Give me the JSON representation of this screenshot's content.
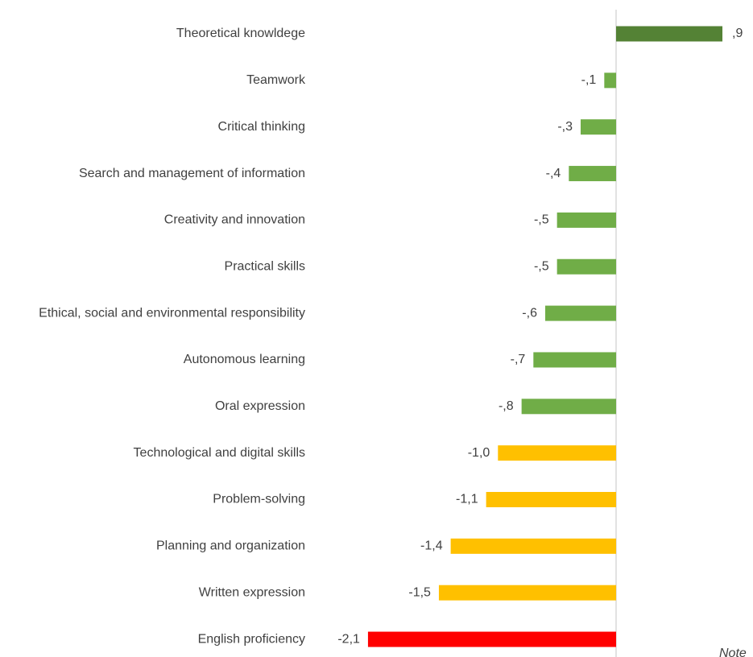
{
  "chart_data": {
    "type": "bar",
    "orientation": "horizontal",
    "categories": [
      "Theoretical knowldege",
      "Teamwork",
      "Critical thinking",
      "Search and management of information",
      "Creativity and innovation",
      "Practical skills",
      "Ethical, social and environmental responsibility",
      "Autonomous learning",
      "Oral expression",
      "Technological and digital skills",
      "Problem-solving",
      "Planning and organization",
      "Written expression",
      "English proficiency"
    ],
    "values": [
      0.9,
      -0.1,
      -0.3,
      -0.4,
      -0.5,
      -0.5,
      -0.6,
      -0.7,
      -0.8,
      -1.0,
      -1.1,
      -1.4,
      -1.5,
      -2.1
    ],
    "value_labels": [
      ",9",
      "-,1",
      "-,3",
      "-,4",
      "-,5",
      "-,5",
      "-,6",
      "-,7",
      "-,8",
      "-1,0",
      "-1,1",
      "-1,4",
      "-1,5",
      "-2,1"
    ],
    "colors": [
      "#548235",
      "#70ad47",
      "#70ad47",
      "#70ad47",
      "#70ad47",
      "#70ad47",
      "#70ad47",
      "#70ad47",
      "#70ad47",
      "#ffc000",
      "#ffc000",
      "#ffc000",
      "#ffc000",
      "#ff0000"
    ],
    "annotation": "Note"
  }
}
